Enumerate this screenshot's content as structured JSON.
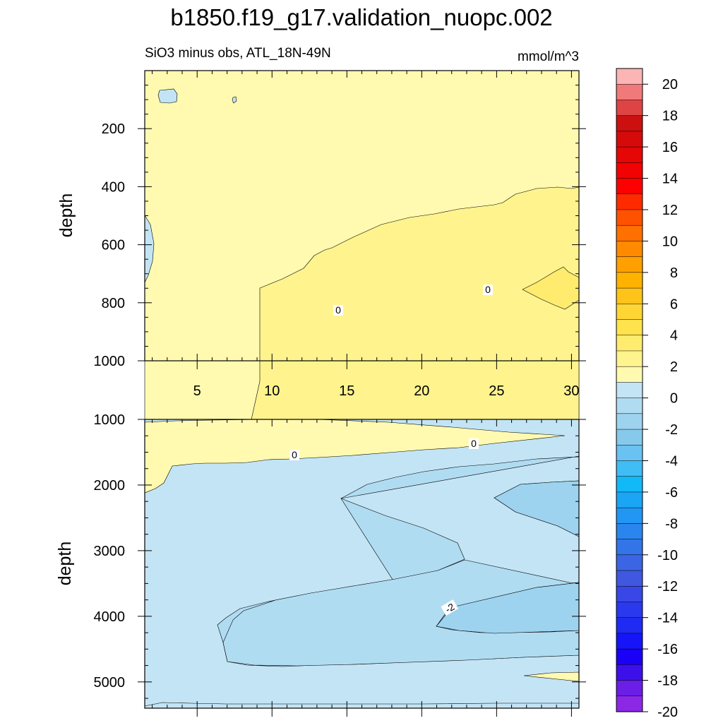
{
  "chart_data": {
    "type": "contour",
    "title": "b1850.f19_g17.validation_nuopc.002",
    "subtitle_left": "SiO3 minus obs, ATL_18N-49N",
    "subtitle_right": "mmol/m^3",
    "top_panel": {
      "ylabel": "depth",
      "ylim": [
        1000,
        0
      ],
      "xlim": [
        1.5,
        30.5
      ],
      "x_ticks": [
        "5",
        "10",
        "15",
        "20",
        "25",
        "30"
      ],
      "y_ticks": [
        "200",
        "400",
        "600",
        "800",
        "1000"
      ],
      "contour_labels": [
        "0",
        "0"
      ]
    },
    "bottom_panel": {
      "ylabel": "depth",
      "ylim": [
        5400,
        1000
      ],
      "xlim": [
        1.5,
        30.5
      ],
      "y_ticks": [
        "1000",
        "2000",
        "3000",
        "4000",
        "5000"
      ],
      "contour_labels": [
        "0",
        "0",
        "-2"
      ]
    },
    "colorbar": {
      "labels": [
        "20",
        "18",
        "16",
        "14",
        "12",
        "10",
        "8",
        "6",
        "4",
        "2",
        "0",
        "-2",
        "-4",
        "-6",
        "-8",
        "-10",
        "-12",
        "-14",
        "-16",
        "-18",
        "-20"
      ],
      "colors": [
        "#fbb5b5",
        "#f07a7a",
        "#de4444",
        "#cc1010",
        "#d60a0a",
        "#e50606",
        "#f20202",
        "#ff0000",
        "#ff2b00",
        "#ff5100",
        "#ff7000",
        "#ff8a00",
        "#ffa000",
        "#ffb200",
        "#ffc41a",
        "#ffd633",
        "#ffe34d",
        "#ffec6e",
        "#fff38e",
        "#fffab0",
        "#c3e4f4",
        "#b0dcf2",
        "#9dd3ef",
        "#86c9eb",
        "#69c2f1",
        "#3fbdf4",
        "#12b9f7",
        "#1aa6f5",
        "#2196f3",
        "#2a85ee",
        "#3374e8",
        "#3b65e3",
        "#3f58df",
        "#3947e6",
        "#2a38ee",
        "#1f2af3",
        "#1515f7",
        "#1a00f5",
        "#3d10ea",
        "#6a1ee6",
        "#8b28e6"
      ]
    }
  }
}
